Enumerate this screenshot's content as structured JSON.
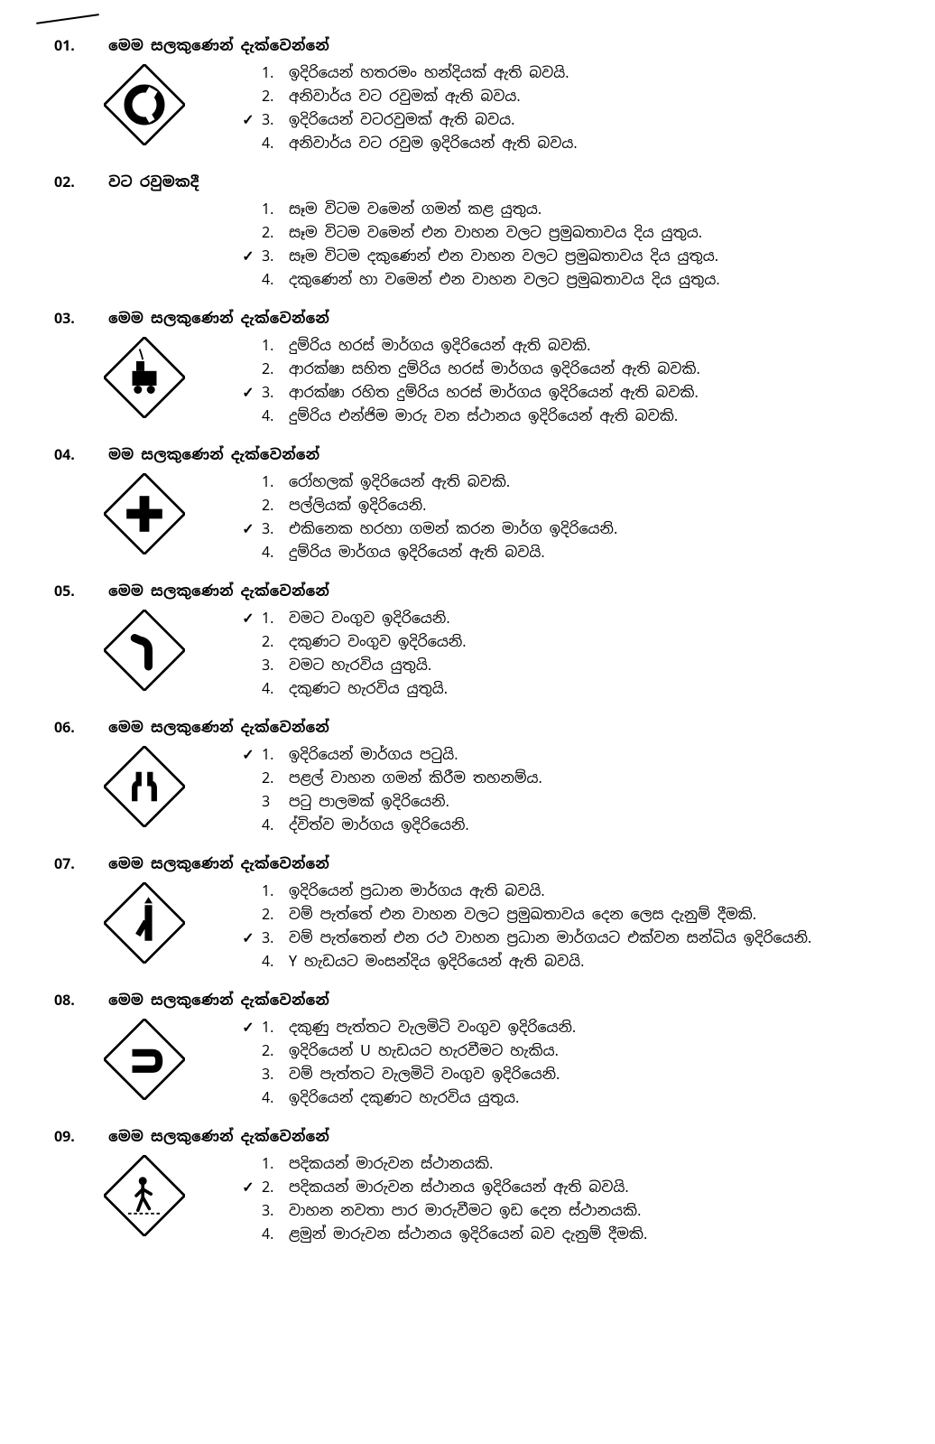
{
  "tick_mark": "✓",
  "questions": [
    {
      "num": "01.",
      "prompt": "මෙම සලකුණෙන් දැක්වෙන්නේ",
      "has_sign": true,
      "sign": "roundabout",
      "correct": 3,
      "options": [
        {
          "n": "1.",
          "t": "ඉදිරියෙන් හතරමං හන්දියක් ඇති බවයි."
        },
        {
          "n": "2.",
          "t": "අනිවාර්ය වට රවුමක් ඇති බවය."
        },
        {
          "n": "3.",
          "t": "ඉදිරියෙන් වටරවුමක් ඇති බවය."
        },
        {
          "n": "4.",
          "t": "අනිවාර්ය වට රවුම ඉදිරියෙන් ඇති බවය."
        }
      ]
    },
    {
      "num": "02.",
      "prompt": "වට රවුමකදී",
      "has_sign": false,
      "sign": "",
      "correct": 3,
      "options": [
        {
          "n": "1.",
          "t": "සෑම විටම වමෙන් ගමන් කළ යුතුය."
        },
        {
          "n": "2.",
          "t": "සෑම විටම වමෙන් එන වාහන වලට ප්‍රමුඛතාවය දිය යුතුය."
        },
        {
          "n": "3.",
          "t": "සෑම විටම දකුණෙන් එන වාහන වලට ප්‍රමුඛතාවය දිය යුතුය."
        },
        {
          "n": "4.",
          "t": "දකුණෙන් හා වමෙන් එන වාහන වලට ප්‍රමුඛතාවය දිය යුතුය."
        }
      ]
    },
    {
      "num": "03.",
      "prompt": "මෙම සලකුණෙන් දැක්වෙන්නේ",
      "has_sign": true,
      "sign": "train",
      "correct": 3,
      "options": [
        {
          "n": "1.",
          "t": "දුම්රිය හරස් මාර්ගය ඉදිරියෙන් ඇති බවකි."
        },
        {
          "n": "2.",
          "t": "ආරක්ෂා සහිත දුම්රිය හරස් මාර්ගය ඉදිරියෙන් ඇති බවකි."
        },
        {
          "n": "3.",
          "t": "ආරක්ෂා රහිත දුම්රිය හරස් මාර්ගය ඉදිරියෙන් ඇති බවකි."
        },
        {
          "n": "4.",
          "t": "දුම්රිය එන්ජිම මාරු වන ස්ථානය ඉදිරියෙන් ඇති බවකි."
        }
      ]
    },
    {
      "num": "04.",
      "prompt": "මම සලකුණෙන් දැක්වෙන්නේ",
      "has_sign": true,
      "sign": "cross",
      "correct": 3,
      "options": [
        {
          "n": "1.",
          "t": "රෝහලක් ඉදිරියෙන් ඇති බවකි."
        },
        {
          "n": "2.",
          "t": "පල්ලියක් ඉදිරියෙනි."
        },
        {
          "n": "3.",
          "t": "එකිනෙක හරහා ගමන් කරන මාර්ග ඉදිරියෙනි."
        },
        {
          "n": "4.",
          "t": "දුම්රිය මාර්ගය ඉදිරියෙන් ඇති බවයි."
        }
      ]
    },
    {
      "num": "05.",
      "prompt": "මෙම සලකුණෙන් දැක්වෙන්නේ",
      "has_sign": true,
      "sign": "left-bend",
      "correct": 1,
      "options": [
        {
          "n": "1.",
          "t": "වමට වංගුව ඉදිරියෙනි."
        },
        {
          "n": "2.",
          "t": "දකුණට වංගුව ඉදිරියෙනි."
        },
        {
          "n": "3.",
          "t": "වමට හැරවිය යුතුයි."
        },
        {
          "n": "4.",
          "t": "දකුණට හැරවිය යුතුයි."
        }
      ]
    },
    {
      "num": "06.",
      "prompt": "මෙම සලකුණෙන් දැක්වෙන්නේ",
      "has_sign": true,
      "sign": "narrow",
      "correct": 1,
      "options": [
        {
          "n": "1.",
          "t": "ඉදිරියෙන් මාර්ගය පටුයි."
        },
        {
          "n": "2.",
          "t": "පළල් වාහන ගමන් කිරීම තහනම්ය."
        },
        {
          "n": "3",
          "t": "පටු පාලමක් ඉදිරියෙනි."
        },
        {
          "n": "4.",
          "t": "ද්විත්ව මාර්ගය ඉදිරියෙනි."
        }
      ]
    },
    {
      "num": "07.",
      "prompt": "මෙම සලකුණෙන් දැක්වෙන්නේ",
      "has_sign": true,
      "sign": "merge",
      "correct": 3,
      "options": [
        {
          "n": "1.",
          "t": "ඉදිරියෙන් ප්‍රධාන මාර්ගය ඇති බවයි."
        },
        {
          "n": "2.",
          "t": "වම් පැත්තේ එන වාහන වලට ප්‍රමුඛතාවය දෙන ලෙස දැනුම් දීමකි."
        },
        {
          "n": "3.",
          "t": "වම් පැත්තෙන් එන රථ වාහන ප්‍රධාන මාර්ගයට එක්වන සන්ධිය ඉදිරියෙනි."
        },
        {
          "n": "4.",
          "t": "Y හැඩයට මංසන්දිය ඉදිරියෙන් ඇති බවයි."
        }
      ]
    },
    {
      "num": "08.",
      "prompt": "මෙම සලකුණෙන් දැක්වෙන්නේ",
      "has_sign": true,
      "sign": "hairpin",
      "correct": 1,
      "options": [
        {
          "n": "1.",
          "t": "දකුණු පැත්තට වැලමිටි වංගුව ඉදිරියෙනි."
        },
        {
          "n": "2.",
          "t": "ඉදිරියෙන් U හැඩයට හැරවීමට හැකිය."
        },
        {
          "n": "3.",
          "t": "වම් පැත්තට වැලමිටි වංගුව ඉදිරියෙනි."
        },
        {
          "n": "4.",
          "t": "ඉදිරියෙන් දකුණට හැරවිය යුතුය."
        }
      ]
    },
    {
      "num": "09.",
      "prompt": "මෙම සලකුණෙන් දැක්වෙන්නේ",
      "has_sign": true,
      "sign": "pedestrian",
      "correct": 2,
      "options": [
        {
          "n": "1.",
          "t": "පදිකයන් මාරුවන ස්ථානයකි."
        },
        {
          "n": "2.",
          "t": "පදිකයන් මාරුවන ස්ථානය ඉදිරියෙන් ඇති බවයි."
        },
        {
          "n": "3.",
          "t": "වාහන නවතා පාර මාරුවීමට ඉඩ දෙන ස්ථානයකි."
        },
        {
          "n": "4.",
          "t": "ළමුන් මාරුවන ස්ථානය ඉදිරියෙන් බව දැනුම් දීමකි."
        }
      ]
    }
  ],
  "signs_svg": {
    "roundabout": "<svg width='90' height='90' viewBox='0 0 100 100'><rect x='15' y='15' width='70' height='70' fill='none' stroke='#000' stroke-width='3' transform='rotate(45 50 50)'/><circle cx='50' cy='50' r='20' fill='none' stroke='#000' stroke-width='10'/><rect x='48' y='28' width='8' height='8' fill='#fff' transform='rotate(30 50 50)'/><rect x='48' y='64' width='8' height='8' fill='#fff' transform='rotate(210 50 50)'/><rect x='48' y='28' width='8' height='8' fill='#fff' transform='rotate(150 50 50)'/></svg>",
    "train": "<svg width='90' height='90' viewBox='0 0 100 100'><rect x='15' y='15' width='70' height='70' fill='none' stroke='#000' stroke-width='3' transform='rotate(45 50 50)'/><rect x='35' y='42' width='30' height='18' fill='#000'/><rect x='40' y='30' width='10' height='12' fill='#000'/><circle cx='42' cy='65' r='5' fill='#000'/><circle cx='58' cy='65' r='5' fill='#000'/><path d='M 48 28 Q 46 20 44 15' stroke='#000' stroke-width='2' fill='none'/></svg>",
    "cross": "<svg width='90' height='90' viewBox='0 0 100 100'><rect x='15' y='15' width='70' height='70' fill='none' stroke='#000' stroke-width='3' transform='rotate(45 50 50)'/><rect x='44' y='28' width='12' height='44' fill='#000'/><rect x='28' y='44' width='44' height='12' fill='#000'/></svg>",
    "left-bend": "<svg width='90' height='90' viewBox='0 0 100 100'><rect x='15' y='15' width='70' height='70' fill='none' stroke='#000' stroke-width='3' transform='rotate(45 50 50)'/><path d='M 55 70 L 55 50 Q 55 40 45 38 L 38 35' stroke='#000' stroke-width='10' fill='none' stroke-linecap='round'/></svg>",
    "narrow": "<svg width='90' height='90' viewBox='0 0 100 100'><rect x='15' y='15' width='70' height='70' fill='none' stroke='#000' stroke-width='3' transform='rotate(45 50 50)'/><path d='M 38 68 L 38 52 Q 38 46 43 46 L 43 32' stroke='#000' stroke-width='7' fill='none'/><path d='M 62 68 L 62 52 Q 62 46 57 46 L 57 32' stroke='#000' stroke-width='7' fill='none'/></svg>",
    "merge": "<svg width='90' height='90' viewBox='0 0 100 100'><rect x='15' y='15' width='70' height='70' fill='none' stroke='#000' stroke-width='3' transform='rotate(45 50 50)'/><path d='M 55 72 L 55 28' stroke='#000' stroke-width='9' fill='none'/><path d='M 50 26 L 60 26 L 55 18 Z' fill='#000'/><path d='M 42 65 L 52 48' stroke='#000' stroke-width='7' fill='none'/></svg>",
    "hairpin": "<svg width='90' height='90' viewBox='0 0 100 100'><rect x='15' y='15' width='70' height='70' fill='none' stroke='#000' stroke-width='3' transform='rotate(45 50 50)'/><path d='M 35 62 L 60 62 Q 68 62 68 52 Q 68 42 60 42 L 35 42' stroke='#000' stroke-width='9' fill='none' stroke-linecap='butt'/></svg>",
    "pedestrian": "<svg width='90' height='90' viewBox='0 0 100 100'><rect x='15' y='15' width='70' height='70' fill='none' stroke='#000' stroke-width='3' transform='rotate(45 50 50)'/><circle cx='48' cy='32' r='5' fill='#000'/><path d='M 48 37 L 48 52 L 42 68 M 48 52 L 56 66 M 48 42 L 40 50 M 48 42 L 58 48' stroke='#000' stroke-width='4' fill='none' stroke-linecap='round'/><line x1='30' y1='72' x2='70' y2='72' stroke='#000' stroke-width='2' stroke-dasharray='4 3'/></svg>"
  }
}
